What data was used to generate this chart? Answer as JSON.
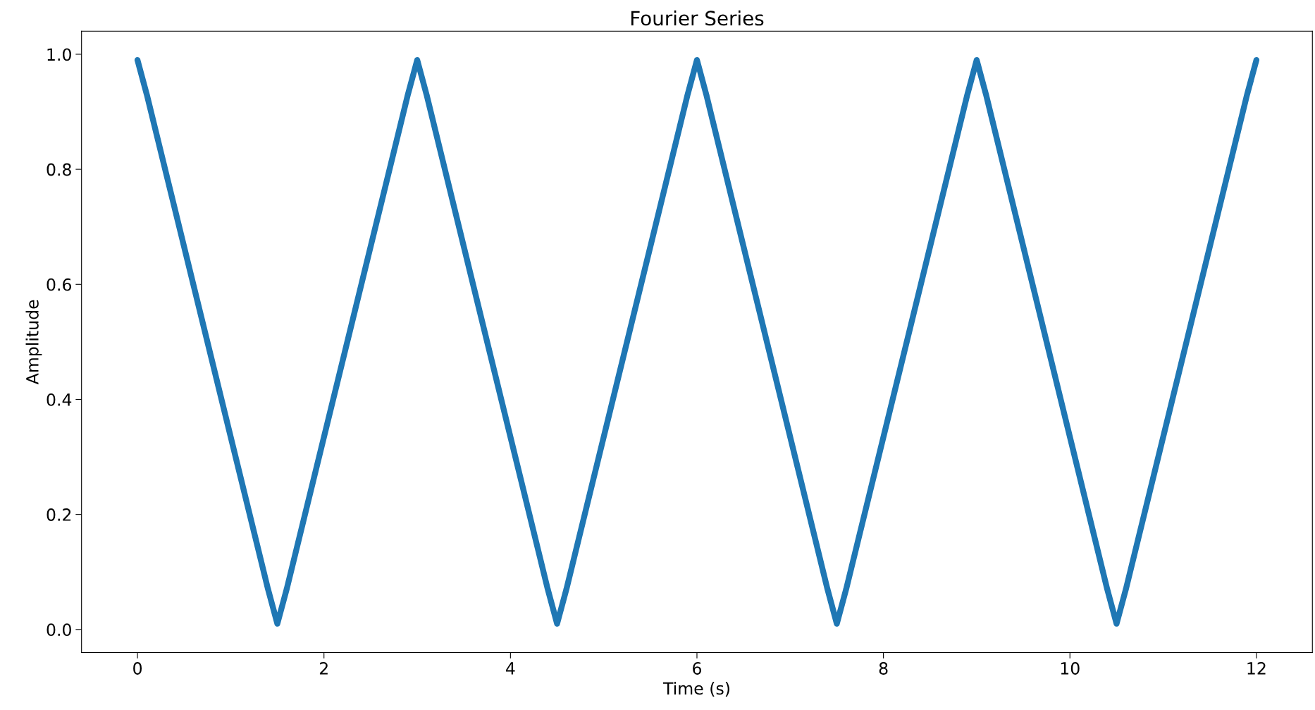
{
  "chart_data": {
    "type": "line",
    "title": "Fourier Series",
    "xlabel": "Time (s)",
    "ylabel": "Amplitude",
    "x": [
      0,
      0.1,
      1.4,
      1.5,
      1.6,
      2.9,
      3,
      3.1,
      4.4,
      4.5,
      4.6,
      5.9,
      6,
      6.1,
      7.4,
      7.5,
      7.6,
      8.9,
      9,
      9.1,
      10.4,
      10.5,
      10.6,
      11.9,
      12
    ],
    "series": [
      {
        "color": "#1f77b4",
        "values": [
          0.99,
          0.93,
          0.07,
          0.01,
          0.07,
          0.93,
          0.99,
          0.93,
          0.07,
          0.01,
          0.07,
          0.93,
          0.99,
          0.93,
          0.07,
          0.01,
          0.07,
          0.93,
          0.99,
          0.93,
          0.07,
          0.01,
          0.07,
          0.93,
          0.99
        ]
      }
    ],
    "xlim": [
      -0.6,
      12.6
    ],
    "ylim": [
      -0.04,
      1.04
    ],
    "xticks": [
      0,
      2,
      4,
      6,
      8,
      10,
      12
    ],
    "yticks": [
      {
        "value": 0,
        "label": "0.0"
      },
      {
        "value": 0.2,
        "label": "0.2"
      },
      {
        "value": 0.4,
        "label": "0.4"
      },
      {
        "value": 0.6,
        "label": "0.6"
      },
      {
        "value": 0.8,
        "label": "0.8"
      },
      {
        "value": 1.0,
        "label": "1.0"
      }
    ],
    "grid": false,
    "legend": false
  }
}
